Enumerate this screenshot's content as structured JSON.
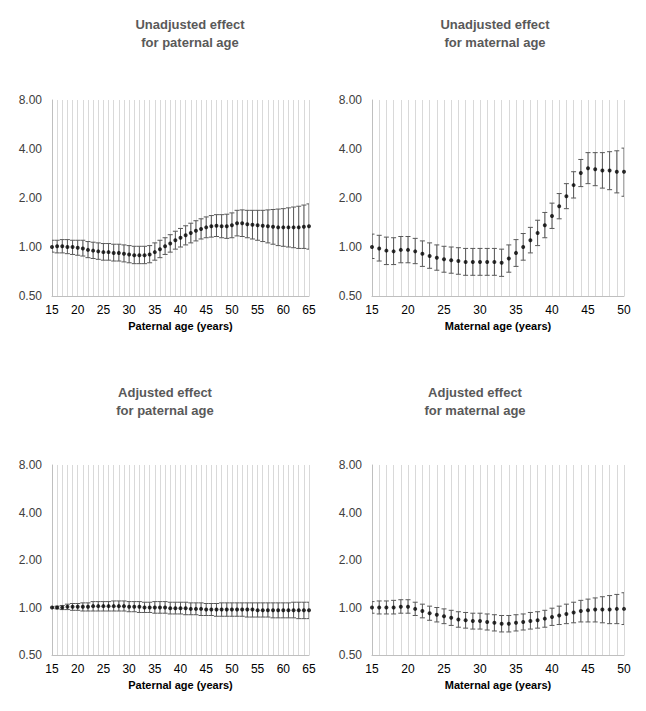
{
  "chart_data": [
    {
      "type": "scatter",
      "title": "Unadjusted effect\nfor paternal age",
      "x_label": "Paternal age (years)",
      "log": "y",
      "grid": true,
      "color": "#000000",
      "x": [
        15,
        16,
        17,
        18,
        19,
        20,
        21,
        22,
        23,
        24,
        25,
        26,
        27,
        28,
        29,
        30,
        31,
        32,
        33,
        34,
        35,
        36,
        37,
        38,
        39,
        40,
        41,
        42,
        43,
        44,
        45,
        46,
        47,
        48,
        49,
        50,
        51,
        52,
        53,
        54,
        55,
        56,
        57,
        58,
        59,
        60,
        61,
        62,
        63,
        64,
        65
      ],
      "values": [
        1.0,
        1.01,
        1.01,
        1.0,
        1.0,
        0.99,
        0.98,
        0.96,
        0.95,
        0.94,
        0.93,
        0.93,
        0.92,
        0.92,
        0.91,
        0.9,
        0.89,
        0.89,
        0.89,
        0.9,
        0.93,
        0.97,
        1.01,
        1.05,
        1.1,
        1.14,
        1.18,
        1.22,
        1.26,
        1.29,
        1.32,
        1.34,
        1.35,
        1.34,
        1.34,
        1.36,
        1.4,
        1.4,
        1.38,
        1.37,
        1.36,
        1.35,
        1.34,
        1.33,
        1.32,
        1.32,
        1.32,
        1.32,
        1.32,
        1.33,
        1.34
      ],
      "ci_lower": [
        0.93,
        0.92,
        0.92,
        0.91,
        0.9,
        0.89,
        0.88,
        0.86,
        0.85,
        0.84,
        0.83,
        0.83,
        0.82,
        0.82,
        0.81,
        0.8,
        0.79,
        0.79,
        0.79,
        0.8,
        0.83,
        0.86,
        0.9,
        0.93,
        0.97,
        1.0,
        1.03,
        1.06,
        1.09,
        1.12,
        1.14,
        1.15,
        1.16,
        1.14,
        1.13,
        1.14,
        1.17,
        1.16,
        1.14,
        1.12,
        1.1,
        1.08,
        1.06,
        1.04,
        1.02,
        1.01,
        1.0,
        0.99,
        0.98,
        0.98,
        0.97
      ],
      "ci_upper": [
        1.1,
        1.1,
        1.11,
        1.11,
        1.1,
        1.1,
        1.1,
        1.08,
        1.07,
        1.06,
        1.05,
        1.05,
        1.04,
        1.04,
        1.03,
        1.02,
        1.01,
        1.01,
        1.01,
        1.02,
        1.06,
        1.1,
        1.14,
        1.19,
        1.25,
        1.3,
        1.35,
        1.4,
        1.45,
        1.49,
        1.53,
        1.56,
        1.58,
        1.58,
        1.59,
        1.62,
        1.68,
        1.69,
        1.68,
        1.68,
        1.68,
        1.68,
        1.69,
        1.7,
        1.71,
        1.72,
        1.74,
        1.76,
        1.78,
        1.81,
        1.84
      ],
      "xlim": [
        15,
        65
      ],
      "xticks": [
        15,
        20,
        25,
        30,
        35,
        40,
        45,
        50,
        55,
        60,
        65
      ],
      "ylim": [
        0.5,
        8
      ],
      "yticks": [
        {
          "value": 0.5,
          "label": "0.50"
        },
        {
          "value": 1,
          "label": "1.00"
        },
        {
          "value": 2,
          "label": "2.00"
        },
        {
          "value": 4,
          "label": "4.00"
        },
        {
          "value": 8,
          "label": "8.00"
        }
      ]
    },
    {
      "type": "scatter",
      "title": "Unadjusted effect\nfor maternal age",
      "x_label": "Maternal age (years)",
      "log": "y",
      "grid": true,
      "color": "#000000",
      "x": [
        15,
        16,
        17,
        18,
        19,
        20,
        21,
        22,
        23,
        24,
        25,
        26,
        27,
        28,
        29,
        30,
        31,
        32,
        33,
        34,
        35,
        36,
        37,
        38,
        39,
        40,
        41,
        42,
        43,
        44,
        45,
        46,
        47,
        48,
        49,
        50
      ],
      "values": [
        1.0,
        0.98,
        0.95,
        0.94,
        0.96,
        0.96,
        0.94,
        0.91,
        0.88,
        0.86,
        0.84,
        0.83,
        0.82,
        0.81,
        0.81,
        0.81,
        0.81,
        0.81,
        0.8,
        0.85,
        0.92,
        1.0,
        1.1,
        1.22,
        1.36,
        1.55,
        1.78,
        2.05,
        2.4,
        2.85,
        3.05,
        3.0,
        2.95,
        2.95,
        2.9,
        2.9
      ],
      "ci_lower": [
        0.85,
        0.82,
        0.78,
        0.78,
        0.8,
        0.8,
        0.79,
        0.76,
        0.74,
        0.72,
        0.7,
        0.69,
        0.68,
        0.67,
        0.67,
        0.67,
        0.67,
        0.67,
        0.66,
        0.7,
        0.76,
        0.83,
        0.92,
        1.02,
        1.14,
        1.3,
        1.49,
        1.72,
        2.0,
        2.35,
        2.45,
        2.38,
        2.3,
        2.25,
        2.15,
        2.05
      ],
      "ci_upper": [
        1.2,
        1.18,
        1.15,
        1.14,
        1.16,
        1.16,
        1.13,
        1.09,
        1.06,
        1.03,
        1.01,
        1.0,
        0.99,
        0.98,
        0.98,
        0.98,
        0.98,
        0.98,
        0.97,
        1.03,
        1.11,
        1.21,
        1.32,
        1.46,
        1.63,
        1.86,
        2.13,
        2.45,
        2.9,
        3.45,
        3.8,
        3.8,
        3.8,
        3.85,
        3.9,
        4.05
      ],
      "xlim": [
        15,
        50
      ],
      "xticks": [
        15,
        20,
        25,
        30,
        35,
        40,
        45,
        50
      ],
      "ylim": [
        0.5,
        8
      ],
      "yticks": [
        {
          "value": 0.5,
          "label": "0.50"
        },
        {
          "value": 1,
          "label": "1.00"
        },
        {
          "value": 2,
          "label": "2.00"
        },
        {
          "value": 4,
          "label": "4.00"
        },
        {
          "value": 8,
          "label": "8.00"
        }
      ]
    },
    {
      "type": "scatter",
      "title": "Adjusted effect\nfor paternal age",
      "x_label": "Paternal age (years)",
      "log": "y",
      "grid": true,
      "color": "#000000",
      "x": [
        15,
        16,
        17,
        18,
        19,
        20,
        21,
        22,
        23,
        24,
        25,
        26,
        27,
        28,
        29,
        30,
        31,
        32,
        33,
        34,
        35,
        36,
        37,
        38,
        39,
        40,
        41,
        42,
        43,
        44,
        45,
        46,
        47,
        48,
        49,
        50,
        51,
        52,
        53,
        54,
        55,
        56,
        57,
        58,
        59,
        60,
        61,
        62,
        63,
        64,
        65
      ],
      "values": [
        1.0,
        1.0,
        1.0,
        1.01,
        1.01,
        1.01,
        1.01,
        1.01,
        1.02,
        1.02,
        1.02,
        1.02,
        1.02,
        1.02,
        1.02,
        1.01,
        1.01,
        1.01,
        1.0,
        1.0,
        1.0,
        1.0,
        1.0,
        0.99,
        0.99,
        0.99,
        0.99,
        0.98,
        0.98,
        0.98,
        0.97,
        0.97,
        0.97,
        0.97,
        0.97,
        0.97,
        0.97,
        0.97,
        0.97,
        0.97,
        0.96,
        0.96,
        0.96,
        0.96,
        0.96,
        0.96,
        0.96,
        0.96,
        0.96,
        0.96,
        0.96
      ],
      "ci_lower": [
        0.99,
        0.98,
        0.97,
        0.97,
        0.96,
        0.96,
        0.95,
        0.95,
        0.95,
        0.95,
        0.95,
        0.95,
        0.95,
        0.95,
        0.95,
        0.94,
        0.94,
        0.93,
        0.93,
        0.93,
        0.92,
        0.92,
        0.92,
        0.91,
        0.91,
        0.91,
        0.9,
        0.9,
        0.9,
        0.89,
        0.89,
        0.89,
        0.88,
        0.88,
        0.88,
        0.88,
        0.88,
        0.88,
        0.87,
        0.87,
        0.87,
        0.87,
        0.87,
        0.86,
        0.86,
        0.86,
        0.86,
        0.86,
        0.85,
        0.85,
        0.85
      ],
      "ci_upper": [
        1.01,
        1.02,
        1.03,
        1.05,
        1.06,
        1.06,
        1.07,
        1.07,
        1.09,
        1.09,
        1.09,
        1.09,
        1.1,
        1.1,
        1.1,
        1.09,
        1.09,
        1.09,
        1.08,
        1.08,
        1.09,
        1.09,
        1.09,
        1.08,
        1.08,
        1.08,
        1.08,
        1.07,
        1.07,
        1.07,
        1.06,
        1.06,
        1.06,
        1.07,
        1.07,
        1.07,
        1.07,
        1.07,
        1.07,
        1.07,
        1.07,
        1.07,
        1.07,
        1.07,
        1.07,
        1.07,
        1.07,
        1.08,
        1.08,
        1.08,
        1.08
      ],
      "xlim": [
        15,
        65
      ],
      "xticks": [
        15,
        20,
        25,
        30,
        35,
        40,
        45,
        50,
        55,
        60,
        65
      ],
      "ylim": [
        0.5,
        8
      ],
      "yticks": [
        {
          "value": 0.5,
          "label": "0.50"
        },
        {
          "value": 1,
          "label": "1.00"
        },
        {
          "value": 2,
          "label": "2.00"
        },
        {
          "value": 4,
          "label": "4.00"
        },
        {
          "value": 8,
          "label": "8.00"
        }
      ]
    },
    {
      "type": "scatter",
      "title": "Adjusted effect\nfor maternal age",
      "x_label": "Maternal age (years)",
      "log": "y",
      "grid": true,
      "color": "#000000",
      "x": [
        15,
        16,
        17,
        18,
        19,
        20,
        21,
        22,
        23,
        24,
        25,
        26,
        27,
        28,
        29,
        30,
        31,
        32,
        33,
        34,
        35,
        36,
        37,
        38,
        39,
        40,
        41,
        42,
        43,
        44,
        45,
        46,
        47,
        48,
        49,
        50
      ],
      "values": [
        1.0,
        1.0,
        1.0,
        1.0,
        1.01,
        1.01,
        0.98,
        0.95,
        0.92,
        0.9,
        0.88,
        0.86,
        0.84,
        0.83,
        0.82,
        0.82,
        0.81,
        0.8,
        0.79,
        0.79,
        0.8,
        0.81,
        0.82,
        0.83,
        0.85,
        0.87,
        0.89,
        0.91,
        0.93,
        0.95,
        0.96,
        0.97,
        0.97,
        0.97,
        0.98,
        0.98
      ],
      "ci_lower": [
        0.92,
        0.91,
        0.91,
        0.91,
        0.92,
        0.92,
        0.89,
        0.86,
        0.83,
        0.81,
        0.79,
        0.77,
        0.75,
        0.74,
        0.73,
        0.73,
        0.72,
        0.71,
        0.7,
        0.7,
        0.71,
        0.72,
        0.73,
        0.74,
        0.75,
        0.77,
        0.78,
        0.79,
        0.8,
        0.81,
        0.81,
        0.81,
        0.8,
        0.79,
        0.79,
        0.78
      ],
      "ci_upper": [
        1.09,
        1.1,
        1.1,
        1.11,
        1.12,
        1.12,
        1.08,
        1.05,
        1.02,
        1.0,
        0.98,
        0.96,
        0.94,
        0.93,
        0.92,
        0.92,
        0.91,
        0.9,
        0.89,
        0.89,
        0.9,
        0.91,
        0.93,
        0.94,
        0.96,
        0.99,
        1.02,
        1.05,
        1.08,
        1.11,
        1.13,
        1.15,
        1.17,
        1.19,
        1.21,
        1.24
      ],
      "xlim": [
        15,
        50
      ],
      "xticks": [
        15,
        20,
        25,
        30,
        35,
        40,
        45,
        50
      ],
      "ylim": [
        0.5,
        8
      ],
      "yticks": [
        {
          "value": 0.5,
          "label": "0.50"
        },
        {
          "value": 1,
          "label": "1.00"
        },
        {
          "value": 2,
          "label": "2.00"
        },
        {
          "value": 4,
          "label": "4.00"
        },
        {
          "value": 8,
          "label": "8.00"
        }
      ]
    }
  ]
}
